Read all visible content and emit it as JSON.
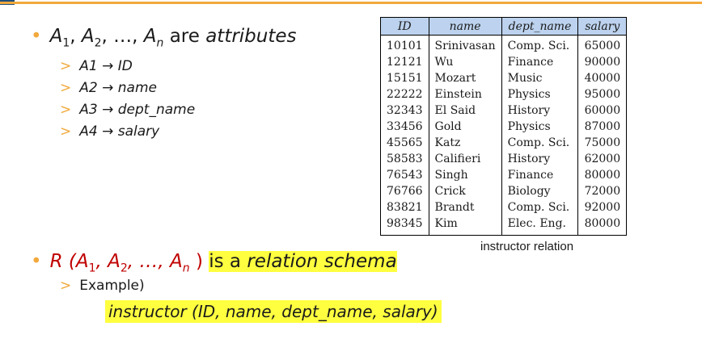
{
  "colors": {
    "accent": "#f2a93b",
    "header_fill": "#bcd2ee",
    "highlight": "#ffff40",
    "red": "#c00000"
  },
  "attributes_line": {
    "a1": "A",
    "n1": "1",
    "a2": "A",
    "n2": "2",
    "ellipsis": "…",
    "an": "A",
    "nn": "n",
    "text": "are",
    "word": "attributes"
  },
  "mappings": [
    {
      "lhs": "A1",
      "rhs": "ID"
    },
    {
      "lhs": "A2",
      "rhs": "name"
    },
    {
      "lhs": "A3",
      "rhs": "dept_name"
    },
    {
      "lhs": "A4",
      "rhs": "salary"
    }
  ],
  "table": {
    "headers": [
      "ID",
      "name",
      "dept_name",
      "salary"
    ],
    "rows": [
      [
        "10101",
        "Srinivasan",
        "Comp. Sci.",
        "65000"
      ],
      [
        "12121",
        "Wu",
        "Finance",
        "90000"
      ],
      [
        "15151",
        "Mozart",
        "Music",
        "40000"
      ],
      [
        "22222",
        "Einstein",
        "Physics",
        "95000"
      ],
      [
        "32343",
        "El Said",
        "History",
        "60000"
      ],
      [
        "33456",
        "Gold",
        "Physics",
        "87000"
      ],
      [
        "45565",
        "Katz",
        "Comp. Sci.",
        "75000"
      ],
      [
        "58583",
        "Califieri",
        "History",
        "62000"
      ],
      [
        "76543",
        "Singh",
        "Finance",
        "80000"
      ],
      [
        "76766",
        "Crick",
        "Biology",
        "72000"
      ],
      [
        "83821",
        "Brandt",
        "Comp. Sci.",
        "92000"
      ],
      [
        "98345",
        "Kim",
        "Elec. Eng.",
        "80000"
      ]
    ],
    "caption": "instructor relation"
  },
  "schema_line": {
    "prefix": "R (A",
    "n1": "1",
    "mid1": ", A",
    "n2": "2",
    "mid2": ", …, A",
    "nn": "n",
    "close": " )",
    "is_a": "is a",
    "relation_schema": "relation schema"
  },
  "example_label": "Example)",
  "example_text": "instructor (ID,  name, dept_name, salary)"
}
